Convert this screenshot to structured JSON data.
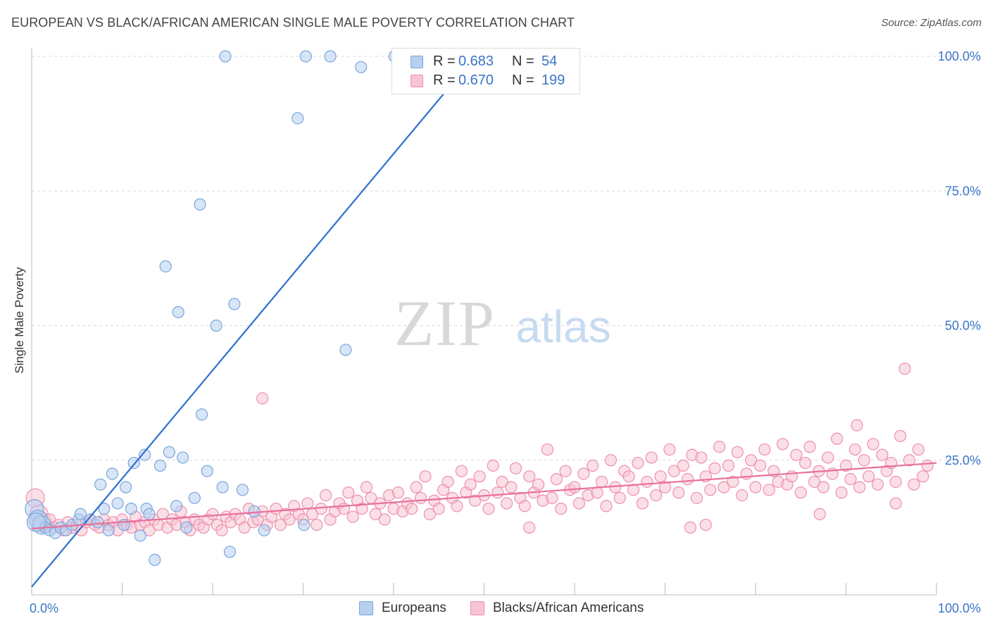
{
  "title": "EUROPEAN VS BLACK/AFRICAN AMERICAN SINGLE MALE POVERTY CORRELATION CHART",
  "source": "Source: ZipAtlas.com",
  "watermark": {
    "zip": "ZIP",
    "atlas": "atlas"
  },
  "colors": {
    "blue_fill": "#b7d0f0",
    "blue_stroke": "#7aa6dc",
    "blue_line": "#2f6fd0",
    "pink_fill": "#f8c4d4",
    "pink_stroke": "#ee8fab",
    "pink_line": "#e8709a",
    "tick_text": "#3a74c8",
    "grid": "#d9d9d9"
  },
  "legend_top": {
    "rows": [
      {
        "r_label": "R =",
        "r_value": "0.683",
        "n_label": "N =",
        "n_value": "54"
      },
      {
        "r_label": "R =",
        "r_value": "0.670",
        "n_label": "N =",
        "n_value": "199"
      }
    ]
  },
  "legend_bottom": [
    "Europeans",
    "Blacks/African Americans"
  ],
  "chart_data": {
    "type": "scatter",
    "title": "EUROPEAN VS BLACK/AFRICAN AMERICAN SINGLE MALE POVERTY CORRELATION CHART",
    "xlabel": "",
    "ylabel": "Single Male Poverty",
    "xlim": [
      0,
      100
    ],
    "ylim": [
      0,
      100
    ],
    "x_tick_labels": [
      "0.0%",
      "100.0%"
    ],
    "y_tick_labels": [
      "25.0%",
      "50.0%",
      "75.0%",
      "100.0%"
    ],
    "y_ticks": [
      25,
      50,
      75,
      100
    ],
    "grid": true,
    "legend_position": "top-center",
    "series": [
      {
        "name": "Europeans",
        "r": 0.683,
        "n": 54,
        "trend": [
          [
            0,
            1.5
          ],
          [
            49,
            100
          ]
        ],
        "points": [
          [
            0.3,
            16
          ],
          [
            0.7,
            14
          ],
          [
            1.1,
            13
          ],
          [
            1.5,
            12.5
          ],
          [
            2.0,
            12
          ],
          [
            2.6,
            11.5
          ],
          [
            3.2,
            12.5
          ],
          [
            3.8,
            12
          ],
          [
            4.5,
            13
          ],
          [
            5.2,
            14
          ],
          [
            5.4,
            15
          ],
          [
            6.5,
            14
          ],
          [
            7.3,
            13.5
          ],
          [
            7.6,
            20.5
          ],
          [
            8.0,
            16
          ],
          [
            8.5,
            12
          ],
          [
            8.9,
            22.5
          ],
          [
            9.5,
            17
          ],
          [
            10.2,
            13
          ],
          [
            10.4,
            20
          ],
          [
            11.0,
            16
          ],
          [
            11.3,
            24.5
          ],
          [
            12.0,
            11
          ],
          [
            12.5,
            26
          ],
          [
            12.7,
            16
          ],
          [
            13.0,
            15
          ],
          [
            13.6,
            6.5
          ],
          [
            14.2,
            24
          ],
          [
            14.8,
            61
          ],
          [
            15.2,
            26.5
          ],
          [
            16.2,
            52.5
          ],
          [
            16.0,
            16.5
          ],
          [
            16.7,
            25.5
          ],
          [
            17.1,
            12.5
          ],
          [
            18.0,
            18
          ],
          [
            18.6,
            72.5
          ],
          [
            18.8,
            33.5
          ],
          [
            19.4,
            23
          ],
          [
            20.4,
            50
          ],
          [
            21.1,
            20
          ],
          [
            21.4,
            100
          ],
          [
            21.9,
            8
          ],
          [
            22.4,
            54
          ],
          [
            23.3,
            19.5
          ],
          [
            24.6,
            15.5
          ],
          [
            25.7,
            12
          ],
          [
            29.4,
            88.5
          ],
          [
            30.1,
            13
          ],
          [
            30.3,
            100
          ],
          [
            33.0,
            100
          ],
          [
            34.7,
            45.5
          ],
          [
            36.4,
            98
          ],
          [
            40.1,
            100
          ],
          [
            0.5,
            13.5
          ]
        ]
      },
      {
        "name": "Blacks/African Americans",
        "r": 0.67,
        "n": 199,
        "trend": [
          [
            0,
            12.3
          ],
          [
            100,
            24.5
          ]
        ],
        "points": [
          [
            0.4,
            18
          ],
          [
            0.8,
            15
          ],
          [
            1.2,
            13.5
          ],
          [
            1.6,
            13
          ],
          [
            2.0,
            14
          ],
          [
            2.5,
            12.5
          ],
          [
            3.0,
            13
          ],
          [
            3.5,
            12
          ],
          [
            4.0,
            13.5
          ],
          [
            4.5,
            12.5
          ],
          [
            5.0,
            13
          ],
          [
            5.5,
            12
          ],
          [
            6.0,
            13.5
          ],
          [
            6.5,
            14
          ],
          [
            7.0,
            13
          ],
          [
            7.5,
            12.5
          ],
          [
            8.0,
            14
          ],
          [
            8.5,
            13
          ],
          [
            9.0,
            13.5
          ],
          [
            9.5,
            12
          ],
          [
            10.0,
            14
          ],
          [
            10.5,
            13
          ],
          [
            11.0,
            12.5
          ],
          [
            11.5,
            14.5
          ],
          [
            12.0,
            13
          ],
          [
            12.5,
            13.5
          ],
          [
            13.0,
            12
          ],
          [
            13.5,
            14
          ],
          [
            14.0,
            13
          ],
          [
            14.5,
            15
          ],
          [
            15.0,
            12.5
          ],
          [
            15.5,
            14
          ],
          [
            16.0,
            13
          ],
          [
            16.5,
            15.5
          ],
          [
            17.0,
            13.5
          ],
          [
            17.5,
            12
          ],
          [
            18.0,
            14
          ],
          [
            18.5,
            13
          ],
          [
            19.0,
            12.5
          ],
          [
            19.5,
            14
          ],
          [
            20.0,
            15
          ],
          [
            20.5,
            13
          ],
          [
            21.0,
            12
          ],
          [
            21.5,
            14.5
          ],
          [
            22.0,
            13.5
          ],
          [
            22.5,
            15
          ],
          [
            23.0,
            14
          ],
          [
            23.5,
            12.5
          ],
          [
            24.0,
            16
          ],
          [
            24.5,
            13.5
          ],
          [
            25.0,
            14
          ],
          [
            25.5,
            15.5
          ],
          [
            26.0,
            13
          ],
          [
            26.5,
            14.5
          ],
          [
            27.0,
            16
          ],
          [
            27.5,
            13
          ],
          [
            28.0,
            15
          ],
          [
            28.5,
            14
          ],
          [
            29.0,
            16.5
          ],
          [
            29.5,
            15
          ],
          [
            30.0,
            14
          ],
          [
            30.5,
            17
          ],
          [
            31.0,
            15
          ],
          [
            31.5,
            13
          ],
          [
            32.0,
            16
          ],
          [
            32.5,
            18.5
          ],
          [
            33.0,
            14
          ],
          [
            33.5,
            15.5
          ],
          [
            34.0,
            17
          ],
          [
            34.5,
            16
          ],
          [
            35.0,
            19
          ],
          [
            35.5,
            14.5
          ],
          [
            36.0,
            17.5
          ],
          [
            36.5,
            16
          ],
          [
            37.0,
            20
          ],
          [
            37.5,
            18
          ],
          [
            38.0,
            15
          ],
          [
            38.5,
            17
          ],
          [
            39.0,
            14
          ],
          [
            39.5,
            18.5
          ],
          [
            40.0,
            16
          ],
          [
            40.5,
            19
          ],
          [
            41.0,
            15.5
          ],
          [
            41.5,
            17
          ],
          [
            42.0,
            16
          ],
          [
            42.5,
            20
          ],
          [
            43.0,
            18
          ],
          [
            43.5,
            22
          ],
          [
            44.0,
            15
          ],
          [
            44.5,
            17.5
          ],
          [
            45.0,
            16
          ],
          [
            45.5,
            19.5
          ],
          [
            46.0,
            21
          ],
          [
            46.5,
            18
          ],
          [
            47.0,
            16.5
          ],
          [
            47.5,
            23
          ],
          [
            48.0,
            19
          ],
          [
            48.5,
            20.5
          ],
          [
            49.0,
            17.5
          ],
          [
            49.5,
            22
          ],
          [
            50.0,
            18.5
          ],
          [
            50.5,
            16
          ],
          [
            51.0,
            24
          ],
          [
            51.5,
            19
          ],
          [
            52.0,
            21
          ],
          [
            52.5,
            17
          ],
          [
            53.0,
            20
          ],
          [
            53.5,
            23.5
          ],
          [
            54.0,
            18
          ],
          [
            54.5,
            16.5
          ],
          [
            55.0,
            22
          ],
          [
            55.5,
            19
          ],
          [
            56.0,
            20.5
          ],
          [
            56.5,
            17.5
          ],
          [
            57.0,
            27
          ],
          [
            57.5,
            18
          ],
          [
            58.0,
            21.5
          ],
          [
            58.5,
            16
          ],
          [
            59.0,
            23
          ],
          [
            59.5,
            19.5
          ],
          [
            60.0,
            20
          ],
          [
            60.5,
            17
          ],
          [
            61.0,
            22.5
          ],
          [
            61.5,
            18.5
          ],
          [
            62.0,
            24
          ],
          [
            62.5,
            19
          ],
          [
            63.0,
            21
          ],
          [
            63.5,
            16.5
          ],
          [
            64.0,
            25
          ],
          [
            64.5,
            20
          ],
          [
            65.0,
            18
          ],
          [
            65.5,
            23
          ],
          [
            66.0,
            22
          ],
          [
            66.5,
            19.5
          ],
          [
            67.0,
            24.5
          ],
          [
            67.5,
            17
          ],
          [
            68.0,
            21
          ],
          [
            68.5,
            25.5
          ],
          [
            69.0,
            18.5
          ],
          [
            69.5,
            22
          ],
          [
            70.0,
            20
          ],
          [
            70.5,
            27
          ],
          [
            71.0,
            23
          ],
          [
            71.5,
            19
          ],
          [
            72.0,
            24
          ],
          [
            72.5,
            21.5
          ],
          [
            73.0,
            26
          ],
          [
            73.5,
            18
          ],
          [
            74.0,
            25.5
          ],
          [
            74.5,
            22
          ],
          [
            75.0,
            19.5
          ],
          [
            75.5,
            23.5
          ],
          [
            76.0,
            27.5
          ],
          [
            76.5,
            20
          ],
          [
            77.0,
            24
          ],
          [
            77.5,
            21
          ],
          [
            78.0,
            26.5
          ],
          [
            78.5,
            18.5
          ],
          [
            79.0,
            22.5
          ],
          [
            79.5,
            25
          ],
          [
            80.0,
            20
          ],
          [
            80.5,
            24
          ],
          [
            81.0,
            27
          ],
          [
            81.5,
            19.5
          ],
          [
            82.0,
            23
          ],
          [
            82.5,
            21
          ],
          [
            83.0,
            28
          ],
          [
            83.5,
            20.5
          ],
          [
            84.0,
            22
          ],
          [
            84.5,
            26
          ],
          [
            85.0,
            19
          ],
          [
            85.5,
            24.5
          ],
          [
            86.0,
            27.5
          ],
          [
            86.5,
            21
          ],
          [
            87.0,
            23
          ],
          [
            87.5,
            20
          ],
          [
            88.0,
            25.5
          ],
          [
            88.5,
            22.5
          ],
          [
            89.0,
            29
          ],
          [
            89.5,
            19
          ],
          [
            90.0,
            24
          ],
          [
            90.5,
            21.5
          ],
          [
            91.0,
            27
          ],
          [
            91.5,
            20
          ],
          [
            92.0,
            25
          ],
          [
            92.5,
            22
          ],
          [
            93.0,
            28
          ],
          [
            93.5,
            20.5
          ],
          [
            94.0,
            26
          ],
          [
            94.5,
            23
          ],
          [
            95.0,
            24.5
          ],
          [
            95.5,
            21
          ],
          [
            96.0,
            29.5
          ],
          [
            96.5,
            42
          ],
          [
            97.0,
            25
          ],
          [
            97.5,
            20.5
          ],
          [
            98.0,
            27
          ],
          [
            98.5,
            22
          ],
          [
            99.0,
            24
          ],
          [
            25.5,
            36.5
          ],
          [
            91.2,
            31.5
          ],
          [
            72.8,
            12.5
          ],
          [
            74.5,
            13
          ],
          [
            87.1,
            15
          ],
          [
            55.0,
            12.5
          ],
          [
            95.5,
            17
          ]
        ]
      }
    ]
  }
}
